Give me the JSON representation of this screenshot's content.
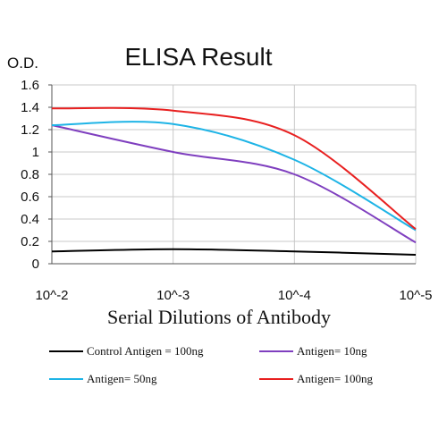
{
  "chart_data": {
    "type": "line",
    "title": "ELISA Result",
    "ylabel": "O.D.",
    "xlabel": "Serial Dilutions of Antibody",
    "x_tick_labels": [
      "10^-2",
      "10^-3",
      "10^-4",
      "10^-5"
    ],
    "x_scale": "log10 dilution",
    "x": [
      0.01,
      0.001,
      0.0001,
      1e-05
    ],
    "ylim": [
      0,
      1.6
    ],
    "y_ticks": [
      "0",
      "0.2",
      "0.4",
      "0.6",
      "0.8",
      "1",
      "1.2",
      "1.4",
      "1.6"
    ],
    "grid": true,
    "legend_position": "bottom",
    "series": [
      {
        "name": "Control Antigen = 100ng",
        "color": "#000000",
        "points": [
          [
            0.01,
            0.11
          ],
          [
            0.001,
            0.13
          ],
          [
            0.0001,
            0.11
          ],
          [
            1e-05,
            0.08
          ]
        ]
      },
      {
        "name": "Antigen= 10ng",
        "color": "#7f3fbf",
        "points": [
          [
            0.01,
            1.24
          ],
          [
            0.001,
            1.0
          ],
          [
            0.0001,
            0.8
          ],
          [
            1e-05,
            0.19
          ]
        ]
      },
      {
        "name": "Antigen= 50ng",
        "color": "#1eb4e6",
        "points": [
          [
            0.01,
            1.24
          ],
          [
            0.001,
            1.25
          ],
          [
            0.0001,
            0.93
          ],
          [
            1e-05,
            0.3
          ]
        ]
      },
      {
        "name": "Antigen= 100ng",
        "color": "#e82020",
        "points": [
          [
            0.01,
            1.39
          ],
          [
            0.001,
            1.37
          ],
          [
            0.0001,
            1.15
          ],
          [
            1e-05,
            0.31
          ]
        ]
      }
    ]
  }
}
